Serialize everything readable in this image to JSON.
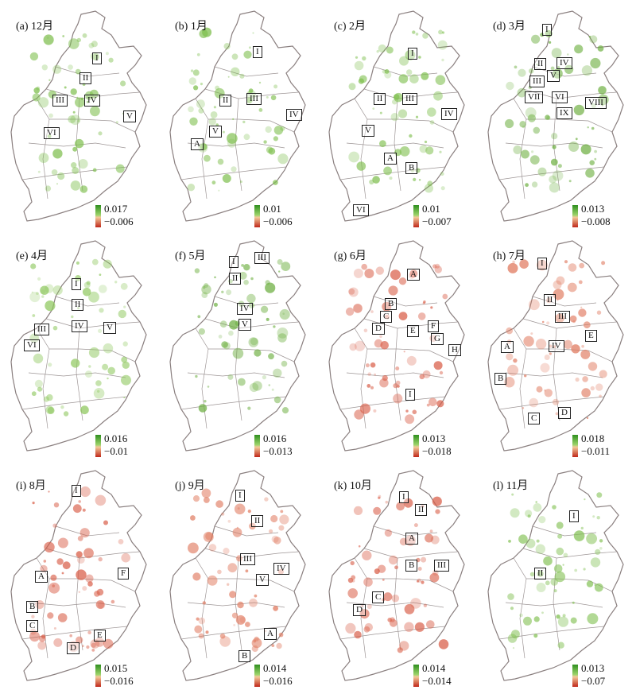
{
  "panels": [
    {
      "title": "(a) 12月",
      "legend": {
        "max": "0.017",
        "min": "−0.006"
      },
      "color": "#7fbf4f",
      "boxes": [
        "I",
        "II",
        "III",
        "IV",
        "V",
        "VI"
      ]
    },
    {
      "title": "(b) 1月",
      "legend": {
        "max": "0.01",
        "min": "−0.006"
      },
      "color": "#7fbf4f",
      "boxes": [
        "I",
        "II",
        "III",
        "IV",
        "V",
        "A"
      ]
    },
    {
      "title": "(c) 2月",
      "legend": {
        "max": "0.01",
        "min": "−0.007"
      },
      "color": "#7fbf4f",
      "boxes": [
        "I",
        "II",
        "III",
        "IV",
        "V",
        "A",
        "B",
        "VI"
      ]
    },
    {
      "title": "(d) 3月",
      "legend": {
        "max": "0.013",
        "min": "−0.008"
      },
      "color": "#6fb043",
      "boxes": [
        "I",
        "II",
        "III",
        "IV",
        "V",
        "VI",
        "VII",
        "VIII",
        "IX"
      ]
    },
    {
      "title": "(e) 4月",
      "legend": {
        "max": "0.016",
        "min": "−0.01"
      },
      "color": "#8fc85f",
      "boxes": [
        "I",
        "II",
        "III",
        "IV",
        "V",
        "VI"
      ]
    },
    {
      "title": "(f) 5月",
      "legend": {
        "max": "0.016",
        "min": "−0.013"
      },
      "color": "#6fb043",
      "boxes": [
        "I",
        "II",
        "III",
        "IV",
        "V"
      ]
    },
    {
      "title": "(g) 6月",
      "legend": {
        "max": "0.013",
        "min": "−0.018"
      },
      "color": "#d9604a",
      "boxes": [
        "A",
        "B",
        "C",
        "D",
        "E",
        "F",
        "G",
        "H",
        "I"
      ]
    },
    {
      "title": "(h) 7月",
      "legend": {
        "max": "0.018",
        "min": "−0.011"
      },
      "color": "#e07a5f",
      "boxes": [
        "I",
        "II",
        "III",
        "IV",
        "A",
        "B",
        "C",
        "D",
        "E"
      ]
    },
    {
      "title": "(i) 8月",
      "legend": {
        "max": "0.015",
        "min": "−0.016"
      },
      "color": "#d9604a",
      "boxes": [
        "I",
        "A",
        "B",
        "C",
        "D",
        "E",
        "F"
      ]
    },
    {
      "title": "(j) 9月",
      "legend": {
        "max": "0.014",
        "min": "−0.016"
      },
      "color": "#e07a5f",
      "boxes": [
        "I",
        "II",
        "III",
        "IV",
        "V",
        "A",
        "B"
      ]
    },
    {
      "title": "(k) 10月",
      "legend": {
        "max": "0.014",
        "min": "−0.014"
      },
      "color": "#d9604a",
      "boxes": [
        "I",
        "II",
        "A",
        "B",
        "III",
        "C",
        "D"
      ]
    },
    {
      "title": "(l) 11月",
      "legend": {
        "max": "0.013",
        "min": "−0.07"
      },
      "color": "#7fbf4f",
      "boxes": [
        "I",
        "II"
      ]
    }
  ]
}
